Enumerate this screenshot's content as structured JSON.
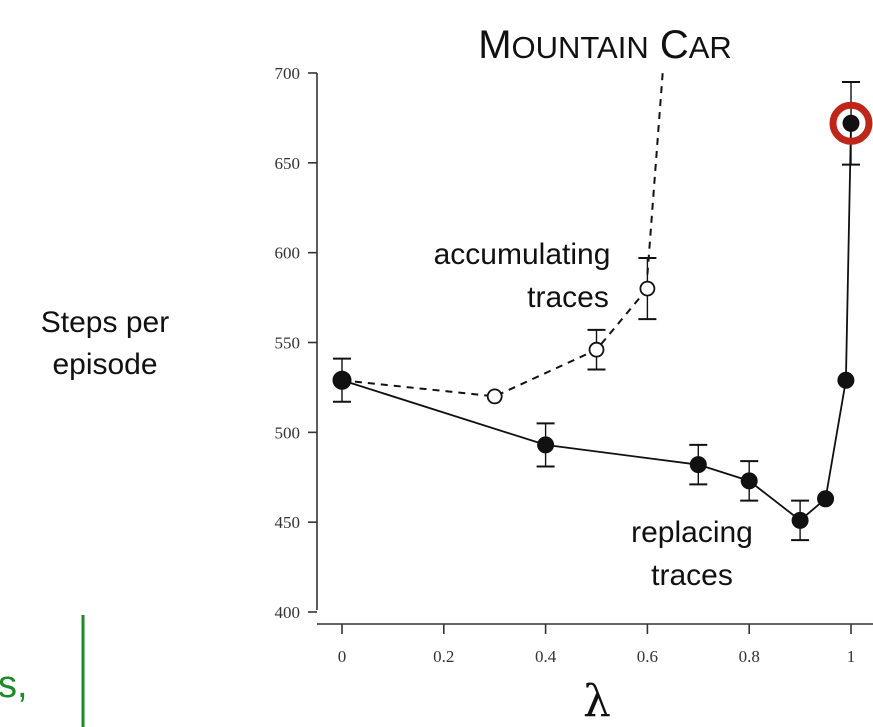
{
  "chart_data": {
    "type": "line",
    "title": "MOUNTAIN CAR",
    "xlabel": "λ",
    "ylabel": "Steps per episode",
    "xlim": [
      0,
      1
    ],
    "ylim": [
      400,
      700
    ],
    "xticks": [
      0,
      0.2,
      0.4,
      0.6,
      0.8,
      1
    ],
    "xtick_labels": [
      "0",
      "0.2",
      "0.4",
      "0.6",
      "0.8",
      "1"
    ],
    "yticks": [
      400,
      450,
      500,
      550,
      600,
      650,
      700
    ],
    "ytick_labels": [
      "400",
      "450",
      "500",
      "550",
      "600",
      "650",
      "700"
    ],
    "grid": false,
    "series": [
      {
        "name": "replacing traces",
        "style": "solid, filled markers",
        "x": [
          0,
          0.4,
          0.7,
          0.8,
          0.9,
          0.95,
          0.99,
          1
        ],
        "y": [
          529,
          493,
          482,
          473,
          451,
          463,
          529,
          672
        ],
        "err": [
          12,
          12,
          11,
          11,
          11,
          0,
          0,
          23
        ]
      },
      {
        "name": "accumulating traces",
        "style": "dashed, open markers",
        "x": [
          0,
          0.3,
          0.5,
          0.6
        ],
        "y": [
          529,
          520,
          546,
          580
        ],
        "err": [
          0,
          0,
          11,
          17
        ]
      }
    ],
    "annotations": {
      "accumulating": [
        "accumulating",
        "traces"
      ],
      "replacing": [
        "replacing",
        "traces"
      ]
    },
    "highlight": {
      "x": 1,
      "y": 672,
      "color": "#c0251a"
    }
  },
  "fragment_text": "s,",
  "colors": {
    "line": "#111111",
    "highlight": "#c0251a",
    "fragment": "#1a8a2a"
  }
}
